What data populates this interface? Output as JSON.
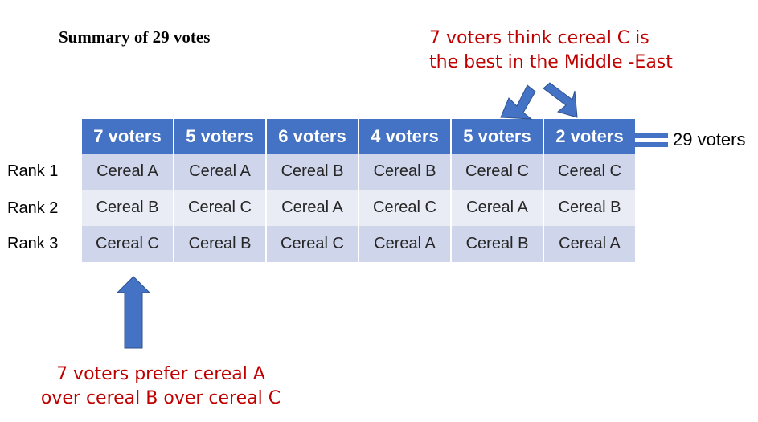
{
  "title": "Summary of 29 votes",
  "note_top": {
    "line1": "7 voters think cereal C is",
    "line2": "the best in the Middle -East"
  },
  "note_bottom": {
    "line1": "7 voters prefer cereal A",
    "line2": "over cereal B over cereal C"
  },
  "total_label": "29 voters",
  "row_labels": [
    "Rank 1",
    "Rank 2",
    "Rank 3"
  ],
  "columns": [
    {
      "header": "7 voters",
      "ranks": [
        "Cereal A",
        "Cereal B",
        "Cereal C"
      ]
    },
    {
      "header": "5 voters",
      "ranks": [
        "Cereal A",
        "Cereal C",
        "Cereal B"
      ]
    },
    {
      "header": "6 voters",
      "ranks": [
        "Cereal B",
        "Cereal A",
        "Cereal C"
      ]
    },
    {
      "header": "4 voters",
      "ranks": [
        "Cereal B",
        "Cereal C",
        "Cereal A"
      ]
    },
    {
      "header": "5 voters",
      "ranks": [
        "Cereal C",
        "Cereal A",
        "Cereal B"
      ]
    },
    {
      "header": "2 voters",
      "ranks": [
        "Cereal C",
        "Cereal B",
        "Cereal A"
      ]
    }
  ],
  "colors": {
    "header": "#4472c4",
    "row_dark": "#cfd5ea",
    "row_light": "#e9ebf5",
    "note": "#c00000",
    "arrow": "#4472c4"
  }
}
